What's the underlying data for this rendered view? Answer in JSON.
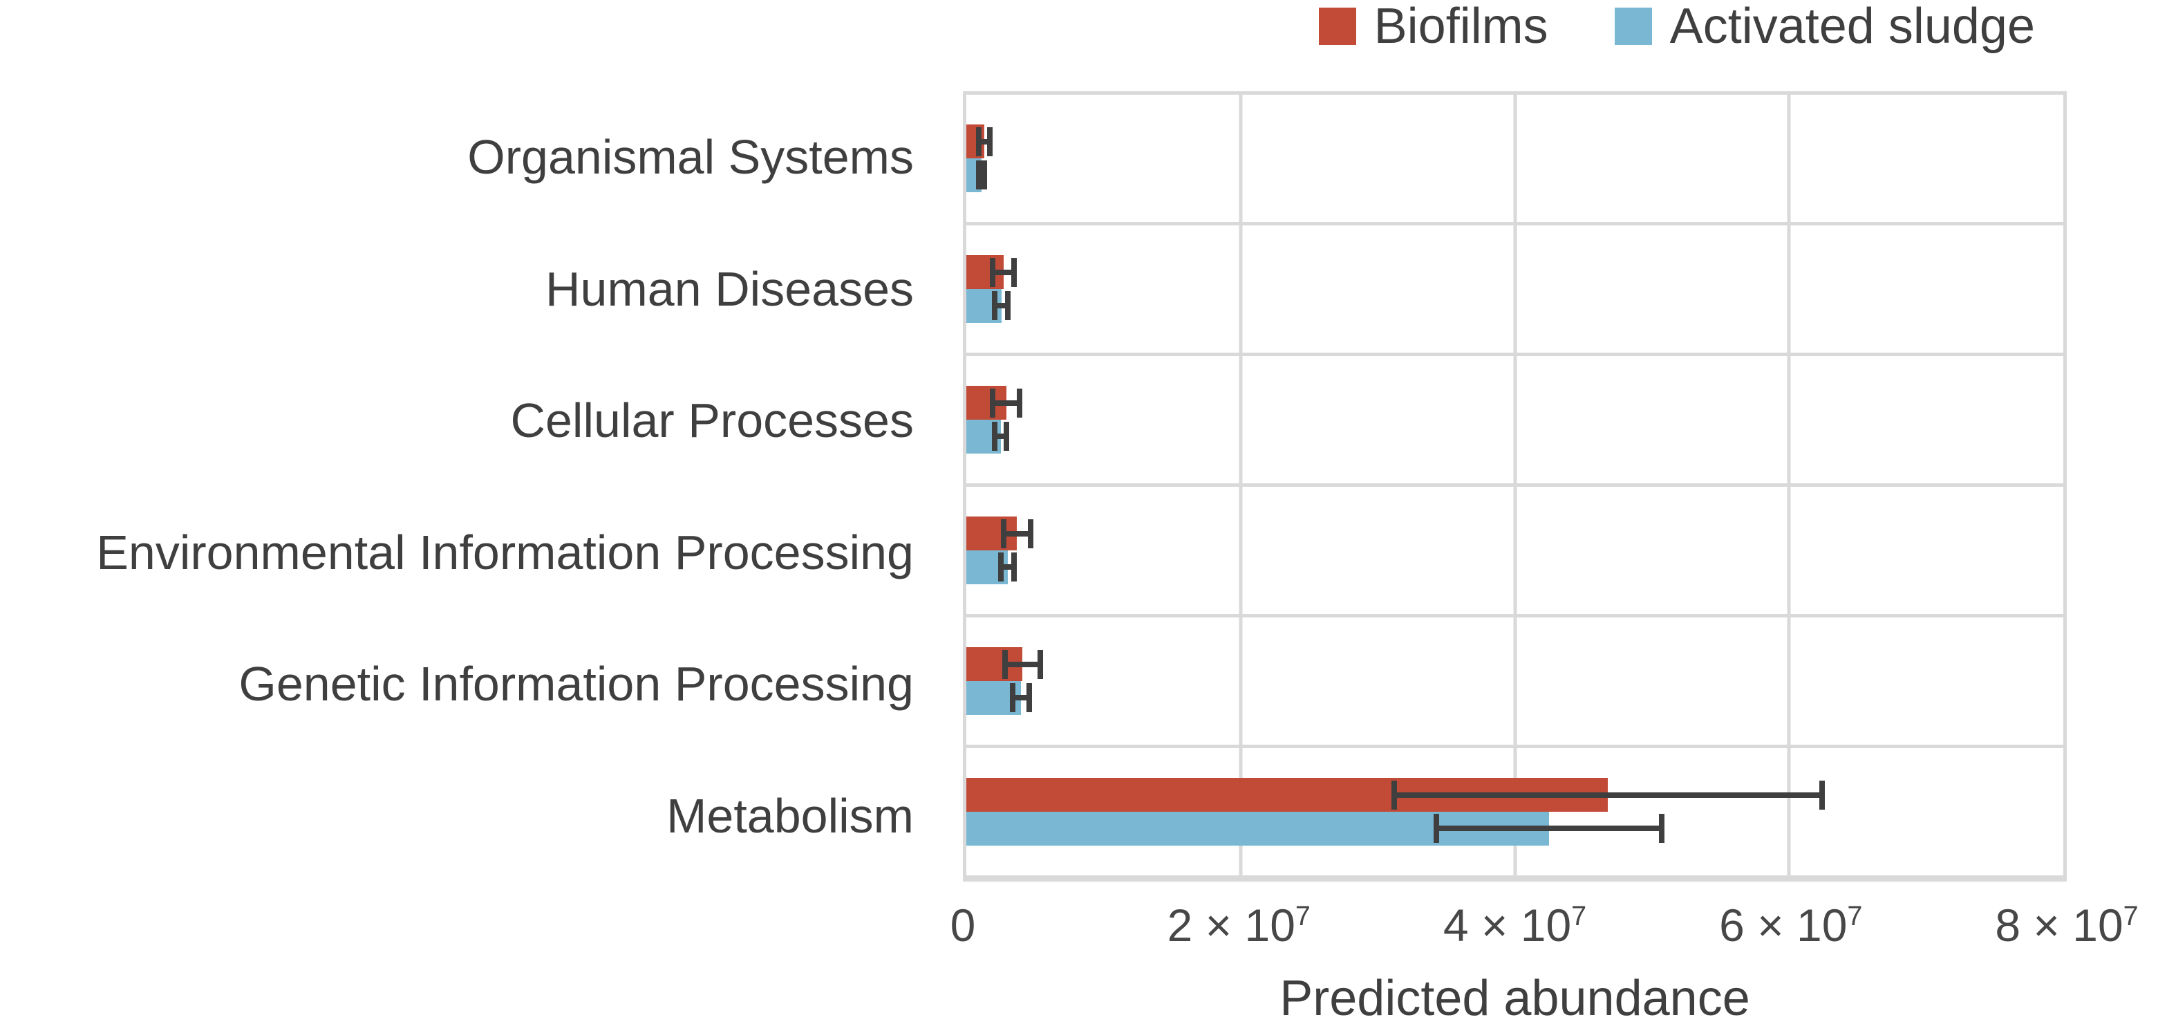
{
  "legend": {
    "items": [
      {
        "label": "Biofilms",
        "color": "#c24b38"
      },
      {
        "label": "Activated sludge",
        "color": "#7ab7d3"
      }
    ]
  },
  "chart_data": {
    "type": "bar",
    "orientation": "horizontal",
    "title": "",
    "xlabel": "Predicted abundance",
    "ylabel": "",
    "xlim": [
      0,
      80000000
    ],
    "grid": true,
    "legend_position": "top-right",
    "error_bars": true,
    "categories": [
      "Organismal Systems",
      "Human Diseases",
      "Cellular Processes",
      "Environmental Information Processing",
      "Genetic Information Processing",
      "Metabolism"
    ],
    "series": [
      {
        "name": "Biofilms",
        "color": "#c24b38",
        "values": [
          1300000,
          2700000,
          2900000,
          3700000,
          4100000,
          46800000
        ],
        "errors": [
          600000,
          1000000,
          1200000,
          1200000,
          1500000,
          15800000
        ]
      },
      {
        "name": "Activated sludge",
        "color": "#7ab7d3",
        "values": [
          1100000,
          2550000,
          2500000,
          3000000,
          4000000,
          42500000
        ],
        "errors": [
          400000,
          700000,
          650000,
          700000,
          800000,
          8400000
        ]
      }
    ],
    "xticks": [
      {
        "value": 0,
        "base": "0",
        "exp": ""
      },
      {
        "value": 20000000,
        "base": "2 × 10",
        "exp": "7"
      },
      {
        "value": 40000000,
        "base": "4 × 10",
        "exp": "7"
      },
      {
        "value": 60000000,
        "base": "6 × 10",
        "exp": "7"
      },
      {
        "value": 80000000,
        "base": "8 × 10",
        "exp": "7"
      }
    ]
  },
  "colors": {
    "biofilms": "#c24b38",
    "activated_sludge": "#7ab7d3",
    "error_bar": "#3f3f3f",
    "gridline": "#d9d9d9",
    "text": "#3f3f3f"
  }
}
